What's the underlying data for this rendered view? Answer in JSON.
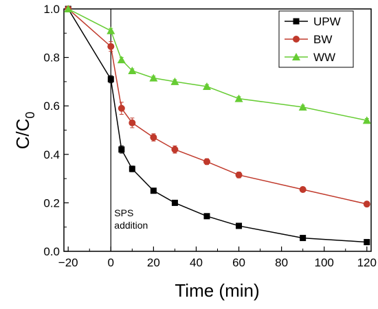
{
  "chart_data": {
    "type": "line",
    "xlabel": "Time (min)",
    "ylabel_main": "C/C",
    "ylabel_sub": "0",
    "xlim": [
      -22,
      122
    ],
    "ylim": [
      0,
      1.0
    ],
    "xticks": [
      -20,
      0,
      20,
      40,
      60,
      80,
      100,
      120
    ],
    "xtick_labels": [
      "−20",
      "0",
      "20",
      "40",
      "60",
      "80",
      "100",
      "120"
    ],
    "yticks": [
      0.0,
      0.2,
      0.4,
      0.6,
      0.8,
      1.0
    ],
    "ytick_labels": [
      "0.0",
      "0.2",
      "0.4",
      "0.6",
      "0.8",
      "1.0"
    ],
    "legend_position": "top-right",
    "annotation": {
      "lines": [
        "SPS",
        "addition"
      ],
      "x": 0
    },
    "series": [
      {
        "name": "UPW",
        "color": "#000000",
        "marker": "square",
        "x": [
          -20,
          0,
          5,
          10,
          20,
          30,
          45,
          60,
          90,
          120
        ],
        "y": [
          1.0,
          0.71,
          0.42,
          0.34,
          0.25,
          0.2,
          0.145,
          0.105,
          0.055,
          0.038
        ],
        "err": [
          0,
          0.015,
          0.015,
          0.012,
          0.01,
          0.008,
          0.006,
          0.005,
          0.004,
          0.003
        ]
      },
      {
        "name": "BW",
        "color": "#C0392B",
        "marker": "circle",
        "x": [
          -20,
          0,
          5,
          10,
          20,
          30,
          45,
          60,
          90,
          120
        ],
        "y": [
          1.0,
          0.845,
          0.59,
          0.53,
          0.47,
          0.42,
          0.37,
          0.315,
          0.255,
          0.195
        ],
        "err": [
          0,
          0.02,
          0.025,
          0.02,
          0.015,
          0.015,
          0.012,
          0.012,
          0.01,
          0.008
        ]
      },
      {
        "name": "WW",
        "color": "#66CC33",
        "marker": "triangle",
        "x": [
          -20,
          0,
          5,
          10,
          20,
          30,
          45,
          60,
          90,
          120
        ],
        "y": [
          1.0,
          0.91,
          0.79,
          0.745,
          0.715,
          0.7,
          0.68,
          0.63,
          0.595,
          0.54
        ],
        "err": [
          0,
          0.01,
          0.01,
          0.008,
          0.008,
          0.008,
          0.008,
          0.008,
          0.008,
          0.008
        ]
      }
    ]
  }
}
